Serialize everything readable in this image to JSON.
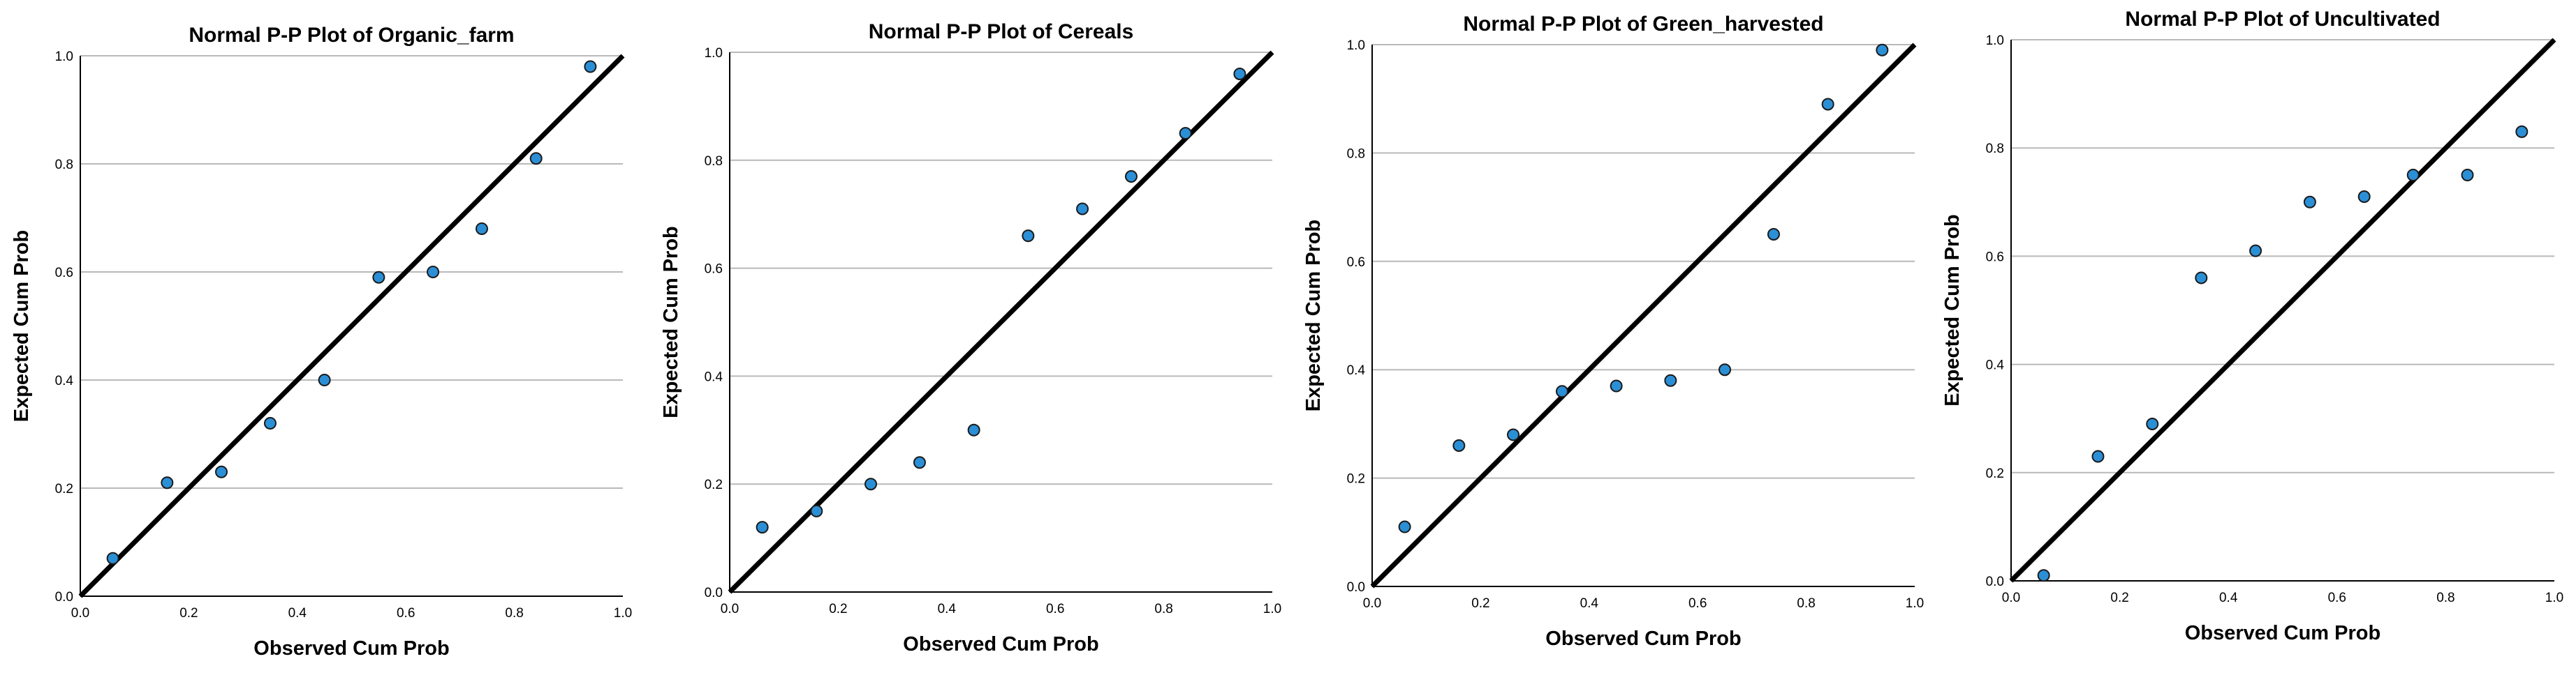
{
  "colors": {
    "point_fill": "#2b8fd6",
    "point_stroke": "#1a1a1a",
    "reference_line": "#000000",
    "gridline": "#b9b9b9"
  },
  "chart_data": [
    {
      "type": "scatter",
      "title": "Normal P-P Plot of Organic_farm",
      "xlabel": "Observed Cum Prob",
      "ylabel": "Expected Cum Prob",
      "xlim": [
        0.0,
        1.0
      ],
      "ylim": [
        0.0,
        1.0
      ],
      "x_ticks": [
        "0.0",
        "0.2",
        "0.4",
        "0.6",
        "0.8",
        "1.0"
      ],
      "y_ticks": [
        "0.0",
        "0.2",
        "0.4",
        "0.6",
        "0.8",
        "1.0"
      ],
      "grid": "horizontal",
      "reference_line": [
        [
          0,
          0
        ],
        [
          1,
          1
        ]
      ],
      "x": [
        0.06,
        0.16,
        0.26,
        0.35,
        0.45,
        0.55,
        0.65,
        0.74,
        0.84,
        0.94
      ],
      "y": [
        0.07,
        0.21,
        0.23,
        0.32,
        0.4,
        0.59,
        0.6,
        0.68,
        0.81,
        0.98
      ]
    },
    {
      "type": "scatter",
      "title": "Normal P-P Plot of Cereals",
      "xlabel": "Observed Cum Prob",
      "ylabel": "Expected Cum Prob",
      "xlim": [
        0.0,
        1.0
      ],
      "ylim": [
        0.0,
        1.0
      ],
      "x_ticks": [
        "0.0",
        "0.2",
        "0.4",
        "0.6",
        "0.8",
        "1.0"
      ],
      "y_ticks": [
        "0.0",
        "0.2",
        "0.4",
        "0.6",
        "0.8",
        "1.0"
      ],
      "grid": "horizontal",
      "reference_line": [
        [
          0,
          0
        ],
        [
          1,
          1
        ]
      ],
      "x": [
        0.06,
        0.16,
        0.26,
        0.35,
        0.45,
        0.55,
        0.65,
        0.74,
        0.84,
        0.94
      ],
      "y": [
        0.12,
        0.15,
        0.2,
        0.24,
        0.3,
        0.66,
        0.71,
        0.77,
        0.85,
        0.96
      ]
    },
    {
      "type": "scatter",
      "title": "Normal P-P Plot of Green_harvested",
      "xlabel": "Observed Cum Prob",
      "ylabel": "Expected Cum Prob",
      "xlim": [
        0.0,
        1.0
      ],
      "ylim": [
        0.0,
        1.0
      ],
      "x_ticks": [
        "0.0",
        "0.2",
        "0.4",
        "0.6",
        "0.8",
        "1.0"
      ],
      "y_ticks": [
        "0.0",
        "0.2",
        "0.4",
        "0.6",
        "0.8",
        "1.0"
      ],
      "grid": "horizontal",
      "reference_line": [
        [
          0,
          0
        ],
        [
          1,
          1
        ]
      ],
      "x": [
        0.06,
        0.16,
        0.26,
        0.35,
        0.45,
        0.55,
        0.65,
        0.74,
        0.84,
        0.94
      ],
      "y": [
        0.11,
        0.26,
        0.28,
        0.36,
        0.37,
        0.38,
        0.4,
        0.65,
        0.89,
        0.99
      ]
    },
    {
      "type": "scatter",
      "title": "Normal P-P Plot of Uncultivated",
      "xlabel": "Observed Cum Prob",
      "ylabel": "Expected Cum Prob",
      "xlim": [
        0.0,
        1.0
      ],
      "ylim": [
        0.0,
        1.0
      ],
      "x_ticks": [
        "0.0",
        "0.2",
        "0.4",
        "0.6",
        "0.8",
        "1.0"
      ],
      "y_ticks": [
        "0.0",
        "0.2",
        "0.4",
        "0.6",
        "0.8",
        "1.0"
      ],
      "grid": "horizontal",
      "reference_line": [
        [
          0,
          0
        ],
        [
          1,
          1
        ]
      ],
      "x": [
        0.06,
        0.16,
        0.26,
        0.35,
        0.45,
        0.55,
        0.65,
        0.74,
        0.84,
        0.94
      ],
      "y": [
        0.01,
        0.23,
        0.29,
        0.56,
        0.61,
        0.7,
        0.71,
        0.75,
        0.75,
        0.83
      ]
    }
  ]
}
